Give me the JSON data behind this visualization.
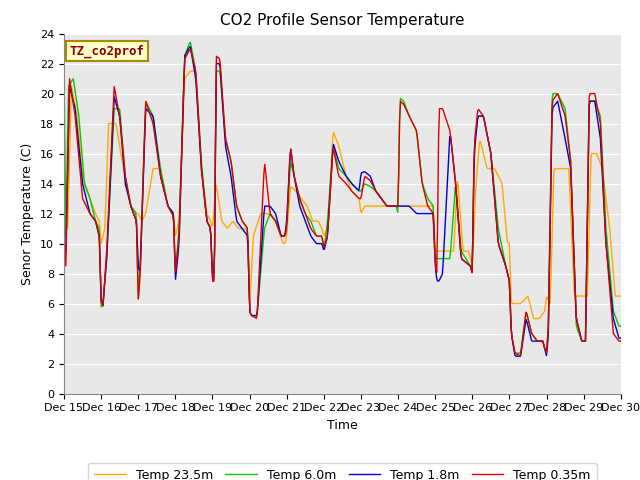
{
  "title": "CO2 Profile Sensor Temperature",
  "ylabel": "Senor Temperature (C)",
  "xlabel": "Time",
  "ylim": [
    0,
    24
  ],
  "background_color": "#ffffff",
  "plot_bg_color": "#e8e8e8",
  "grid_color": "#ffffff",
  "legend_label": "TZ_co2prof",
  "series_labels": [
    "Temp 0.35m",
    "Temp 1.8m",
    "Temp 6.0m",
    "Temp 23.5m"
  ],
  "series_colors": [
    "#dd0000",
    "#0000cc",
    "#00cc00",
    "#ffaa00"
  ],
  "x_tick_labels": [
    "Dec 15",
    "Dec 16",
    "Dec 17",
    "Dec 18",
    "Dec 19",
    "Dec 20",
    "Dec 21",
    "Dec 22",
    "Dec 23",
    "Dec 24",
    "Dec 25",
    "Dec 26",
    "Dec 27",
    "Dec 28",
    "Dec 29",
    "Dec 30"
  ],
  "yticks": [
    0,
    2,
    4,
    6,
    8,
    10,
    12,
    14,
    16,
    18,
    20,
    22,
    24
  ],
  "title_fontsize": 11,
  "axis_fontsize": 9,
  "tick_fontsize": 8
}
